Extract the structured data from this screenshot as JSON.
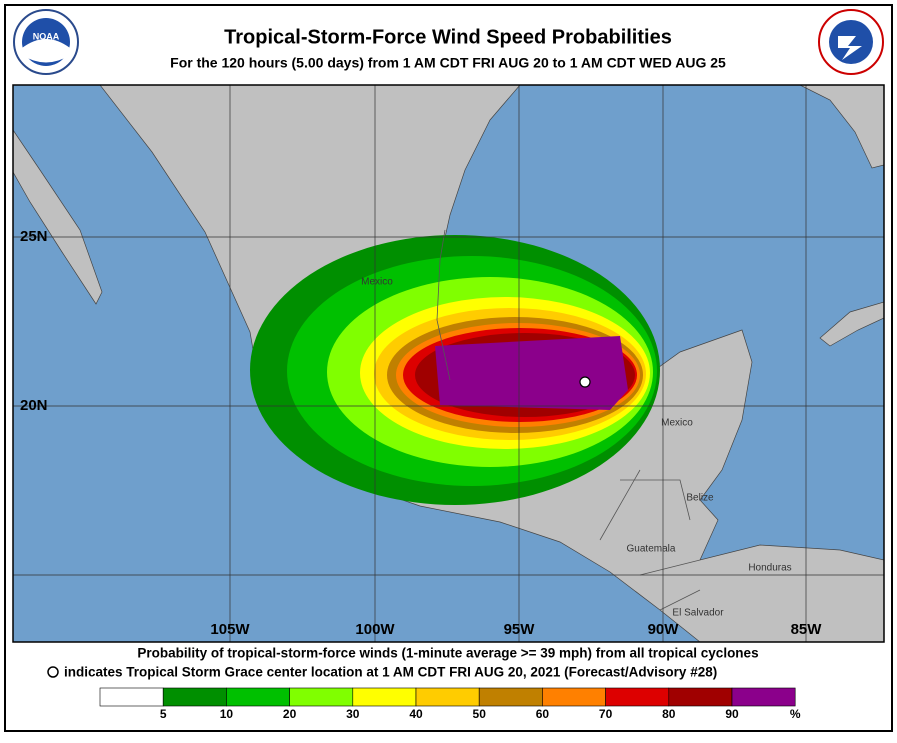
{
  "header": {
    "title": "Tropical-Storm-Force Wind Speed Probabilities",
    "subtitle": "For the 120 hours (5.00 days) from 1 AM CDT FRI AUG 20 to 1 AM CDT WED AUG 25",
    "logo_text": "NOAA"
  },
  "map": {
    "lat_labels": [
      "25N",
      "20N"
    ],
    "lon_labels": [
      "105W",
      "100W",
      "95W",
      "90W",
      "85W"
    ],
    "places": [
      "Mexico",
      "Mexico",
      "Belize",
      "Guatemala",
      "Honduras",
      "El Salvador"
    ]
  },
  "footer": {
    "line1": "Probability of tropical-storm-force winds (1-minute average >= 39 mph) from all tropical cyclones",
    "line2": "indicates Tropical Storm Grace center location at 1 AM CDT FRI AUG 20, 2021 (Forecast/Advisory #28)"
  },
  "legend": {
    "ticks": [
      5,
      10,
      20,
      30,
      40,
      50,
      60,
      70,
      80,
      90
    ],
    "unit": "%",
    "colors": [
      "#ffffff",
      "#008f00",
      "#00c000",
      "#80ff00",
      "#ffff00",
      "#ffcc00",
      "#c08000",
      "#ff8000",
      "#dd0000",
      "#a00000",
      "#8b008b"
    ]
  }
}
